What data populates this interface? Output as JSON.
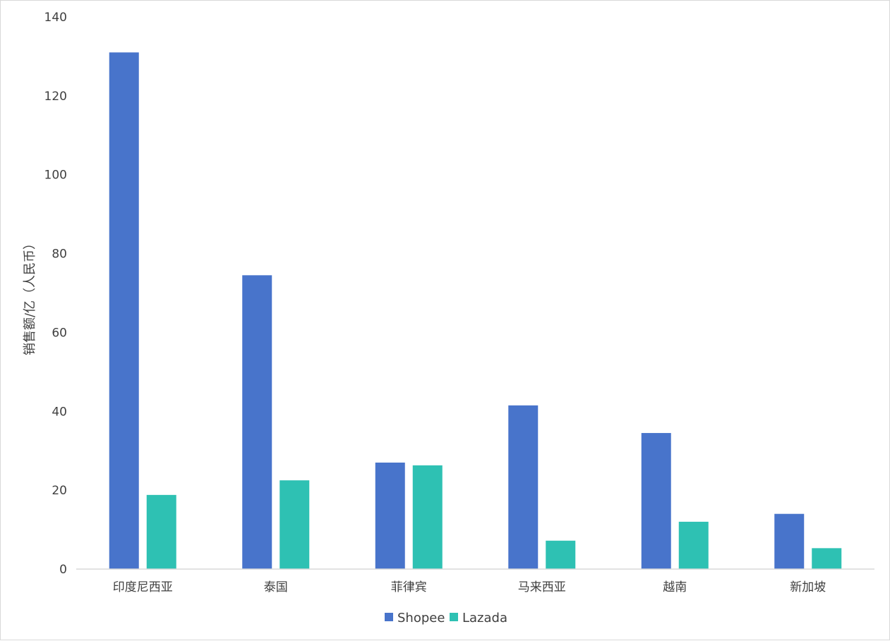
{
  "chart_data": {
    "type": "bar",
    "categories": [
      "印度尼西亚",
      "泰国",
      "菲律宾",
      "马来西亚",
      "越南",
      "新加坡"
    ],
    "series": [
      {
        "name": "Shopee",
        "color": "#4874cb",
        "values": [
          131,
          74.5,
          27,
          41.5,
          34.5,
          14
        ]
      },
      {
        "name": "Lazada",
        "color": "#2ec1b3",
        "values": [
          18.8,
          22.5,
          26.3,
          7.2,
          12,
          5.3
        ]
      }
    ],
    "ylabel": "销售额/亿（人民币）",
    "ylim": [
      0,
      140
    ],
    "yticks": [
      0,
      20,
      40,
      60,
      80,
      100,
      120,
      140
    ],
    "grid": false,
    "legend_position": "bottom"
  }
}
